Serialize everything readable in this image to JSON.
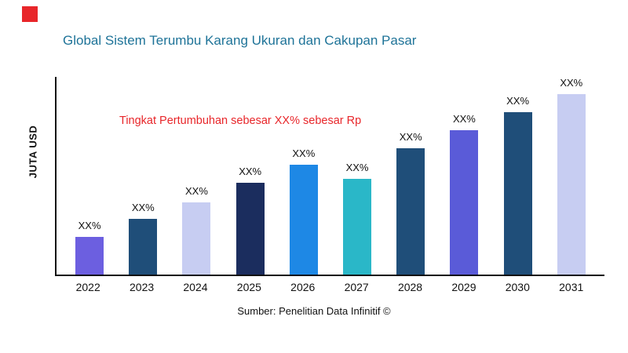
{
  "header": {
    "title": "Global Sistem Terumbu Karang Ukuran dan Cakupan Pasar"
  },
  "annotation": {
    "text": "Tingkat Pertumbuhan sebesar XX% sebesar Rp"
  },
  "axis": {
    "y_label": "JUTA USD"
  },
  "footer": {
    "source": "Sumber: Penelitian Data Infinitif ©"
  },
  "colors": {
    "accent_red": "#e8262a",
    "title_blue": "#1e7398"
  },
  "chart_data": {
    "type": "bar",
    "title": "Global Sistem Terumbu Karang Ukuran dan Cakupan Pasar",
    "xlabel": "",
    "ylabel": "JUTA USD",
    "categories": [
      "2022",
      "2023",
      "2024",
      "2025",
      "2026",
      "2027",
      "2028",
      "2029",
      "2030",
      "2031"
    ],
    "values": [
      21,
      31,
      40,
      51,
      61,
      53,
      70,
      80,
      90,
      100
    ],
    "values_note": "relative heights, % of tallest bar (2031); no numeric y-scale shown",
    "bar_labels": [
      "XX%",
      "XX%",
      "XX%",
      "XX%",
      "XX%",
      "XX%",
      "XX%",
      "XX%",
      "XX%",
      "XX%"
    ],
    "bar_colors": [
      "#6c5fe0",
      "#1f4e79",
      "#c7cdf2",
      "#1b2d5e",
      "#1e88e5",
      "#2ab7c8",
      "#1f4e79",
      "#5a5bd8",
      "#1f4e79",
      "#c7cdf2"
    ],
    "annotation": "Tingkat Pertumbuhan sebesar XX% sebesar Rp",
    "legend": [],
    "grid": false,
    "ylim": [
      0,
      100
    ]
  }
}
